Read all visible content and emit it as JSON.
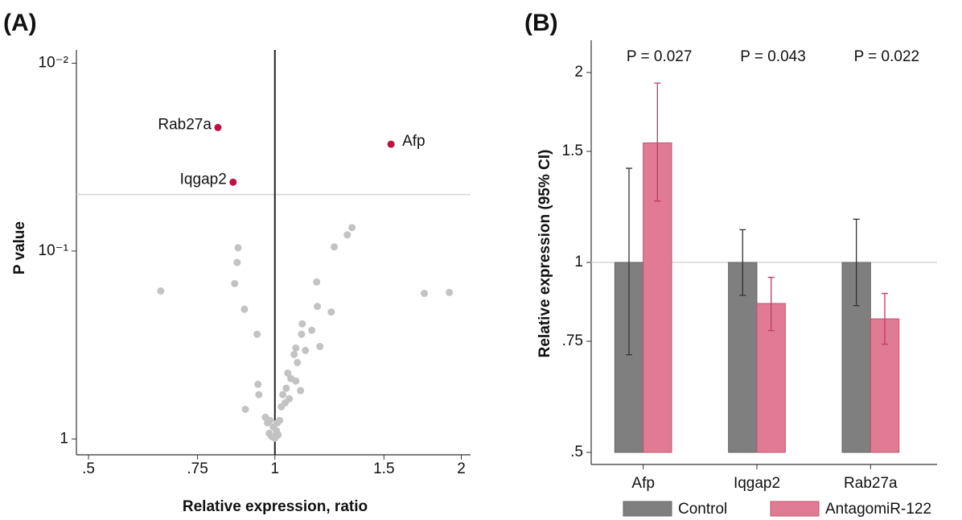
{
  "chart_data": [
    {
      "type": "scatter",
      "panel_label": "(A)",
      "x_label": "Relative expression, ratio",
      "y_label": "P value",
      "xlim": [
        0.478,
        2.07
      ],
      "ylim": [
        1.1,
        0.0085
      ],
      "x_scale": "log",
      "y_scale": "log",
      "xticks": [
        {
          "value": 0.5,
          "label": ".5"
        },
        {
          "value": 0.75,
          "label": ".75"
        },
        1,
        1.5,
        2
      ],
      "yticks": [
        {
          "value": 0.01,
          "label": "10⁻²"
        },
        {
          "value": 0.1,
          "label": "10⁻¹"
        },
        1
      ],
      "reference_lines": {
        "x": 1,
        "y": 0.05
      },
      "series": [
        {
          "color": "#c3c3c3",
          "x": [
            0.654,
            0.872,
            0.869,
            0.861,
            0.893,
            0.936,
            0.939,
            0.942,
            0.896,
            0.965,
            0.982,
            0.994,
            1.006,
            1.012,
            0.988,
            0.979,
            1.009,
            1.018,
            1.0,
            1.024,
            1.03,
            1.043,
            1.049,
            1.061,
            1.081,
            1.087,
            1.074,
            1.104,
            1.107,
            1.12,
            1.147,
            1.081,
            1.1,
            1.055,
            1.171,
            1.168,
            1.233,
            1.182,
            1.247,
            1.309,
            1.332,
            1.743,
            1.913,
            1.039,
            0.973
          ],
          "y": [
            0.163,
            0.096,
            0.115,
            0.149,
            0.204,
            0.277,
            0.512,
            0.581,
            0.695,
            0.766,
            0.797,
            0.863,
            0.906,
            0.952,
            0.971,
            0.933,
            0.821,
            0.797,
            0.99,
            0.674,
            0.581,
            0.537,
            0.446,
            0.477,
            0.328,
            0.392,
            0.355,
            0.277,
            0.244,
            0.338,
            0.264,
            0.492,
            0.553,
            0.611,
            0.197,
            0.146,
            0.211,
            0.322,
            0.095,
            0.082,
            0.075,
            0.168,
            0.166,
            0.642,
            0.821
          ]
        },
        {
          "color": "#c0103f",
          "x": [
            0.809,
            1.54,
            0.856
          ],
          "y": [
            0.022,
            0.027,
            0.043
          ],
          "labels": [
            "Rab27a",
            "Afp",
            "Iqgap2"
          ]
        }
      ]
    },
    {
      "type": "bar",
      "panel_label": "(B)",
      "y_label": "Relative expression (95% CI)",
      "y_scale": "log",
      "ylim": [
        0.5,
        2.25
      ],
      "yticks": [
        {
          "value": 0.5,
          "label": ".5"
        },
        {
          "value": 0.75,
          "label": ".75"
        },
        1,
        1.5,
        2
      ],
      "reference_line": 1,
      "categories": [
        "Afp",
        "Iqgap2",
        "Rab27a"
      ],
      "annotations": [
        "P = 0.027",
        "P = 0.043",
        "P = 0.022"
      ],
      "legend": "bottom",
      "series": [
        {
          "name": "Control",
          "color": "#7f7f7f",
          "error_color": "#333333",
          "values": [
            1,
            1,
            1
          ],
          "ci_low": [
            0.714,
            0.887,
            0.854
          ],
          "ci_high": [
            1.41,
            1.127,
            1.171
          ]
        },
        {
          "name": "AntagomiR-122",
          "color": "#e07b93",
          "error_color": "#c03a5f",
          "values": [
            1.547,
            0.861,
            0.814
          ],
          "ci_low": [
            1.251,
            0.78,
            0.742
          ],
          "ci_high": [
            1.924,
            0.947,
            0.893
          ]
        }
      ]
    }
  ]
}
